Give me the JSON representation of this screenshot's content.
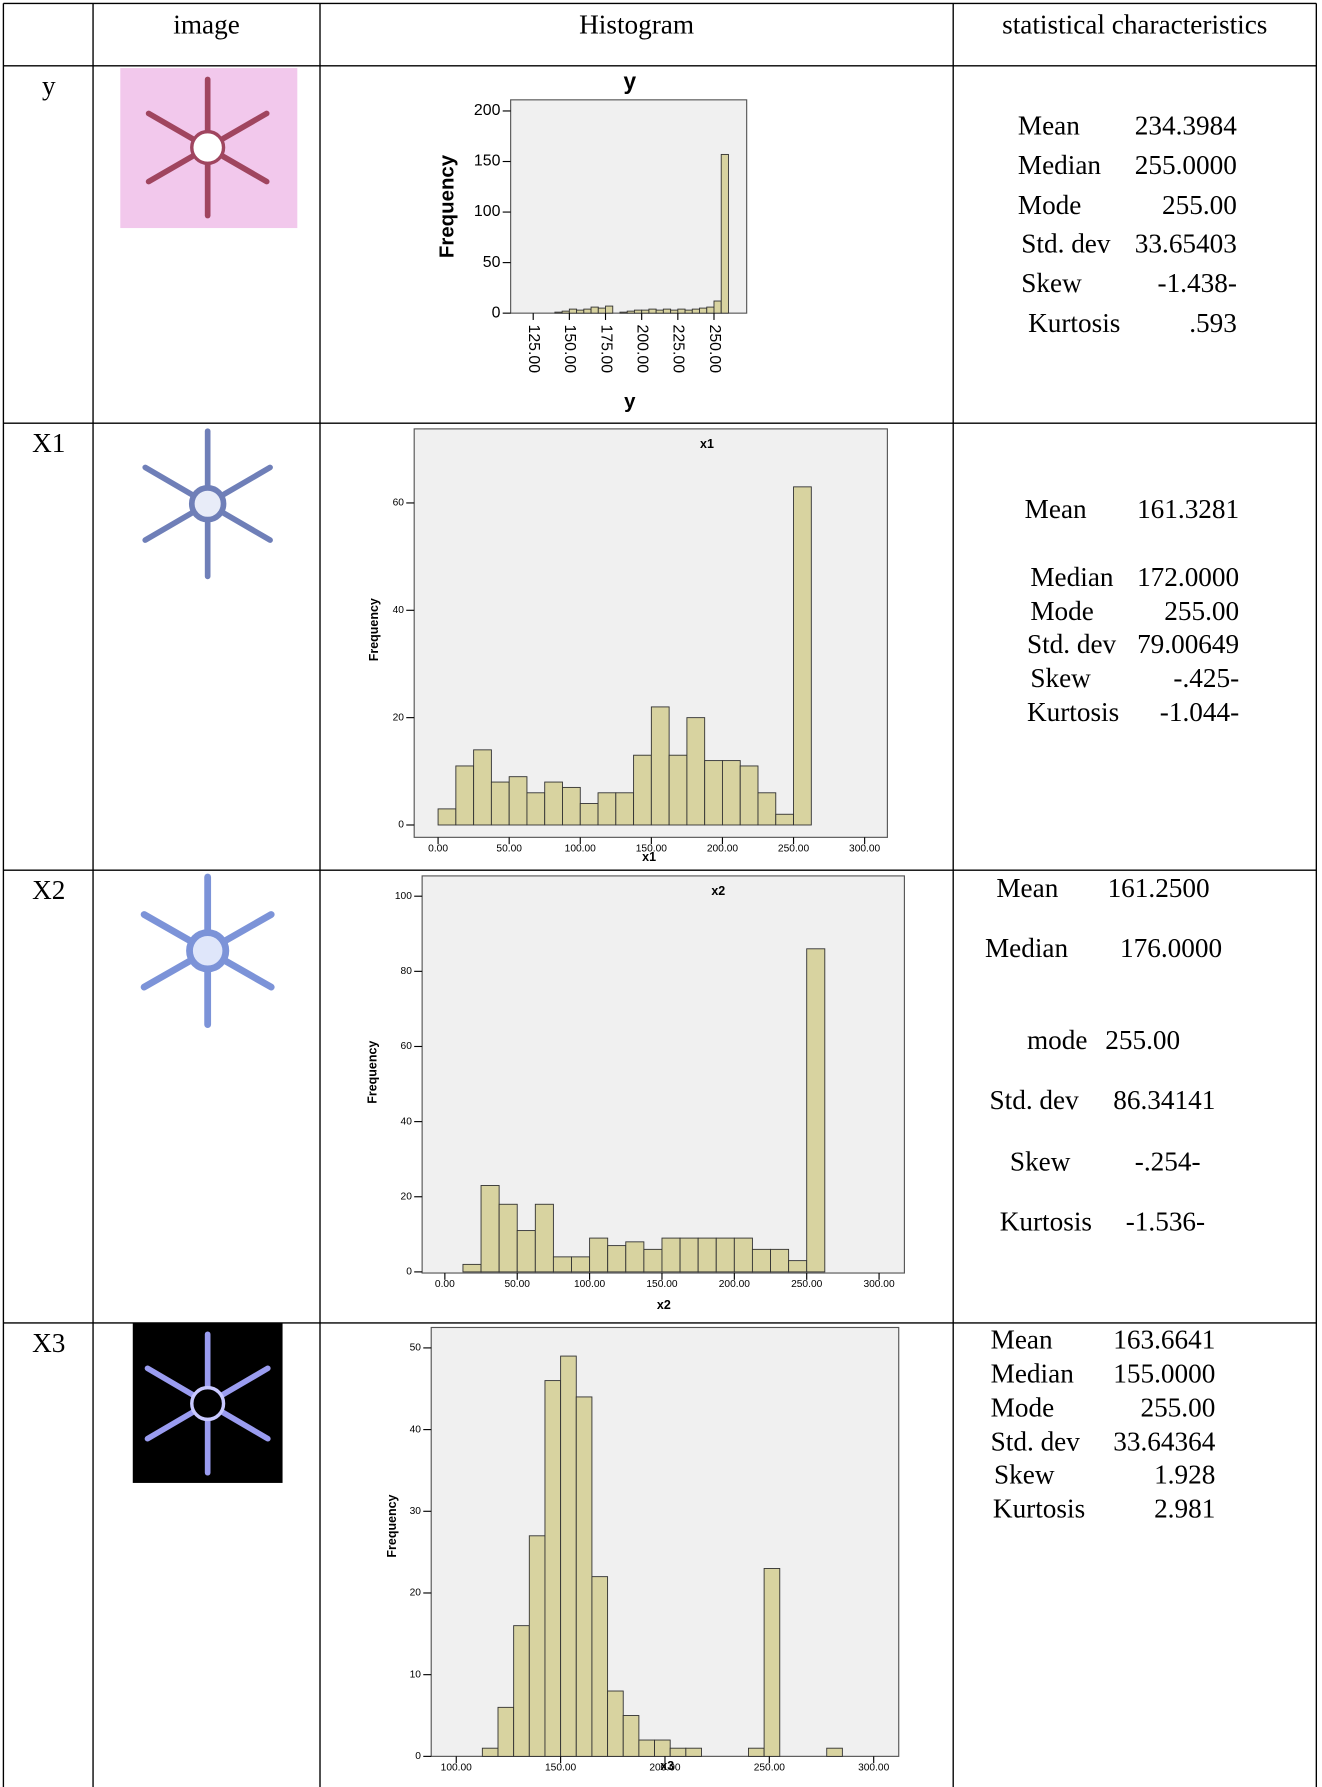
{
  "table": {
    "header": [
      "image",
      "Histogram",
      "statistical characteristics"
    ],
    "rows": [
      {
        "label": "y",
        "chart_data": {
          "type": "histogram",
          "title": "y",
          "x_label": "y",
          "y_label": "Frequency",
          "color": "#d8d3a0",
          "edge_color": "#333333",
          "background": "#f0f0f0",
          "bins": [
            140,
            145,
            150,
            155,
            160,
            165,
            170,
            175,
            180,
            185,
            190,
            195,
            200,
            205,
            210,
            215,
            220,
            225,
            230,
            235,
            240,
            245,
            250,
            255,
            260
          ],
          "values": [
            1,
            2,
            4,
            3,
            4,
            6,
            5,
            7,
            0,
            1,
            2,
            3,
            3,
            4,
            3,
            4,
            3,
            4,
            3,
            4,
            5,
            6,
            12,
            157
          ],
          "xlim": [
            109.4,
            272.6
          ],
          "ylim": [
            0,
            211
          ],
          "xticks": [
            {
              "value": 125,
              "label": "125.00"
            },
            {
              "value": 150,
              "label": "150.00"
            },
            {
              "value": 175,
              "label": "175.00"
            },
            {
              "value": 200,
              "label": "200.00"
            },
            {
              "value": 225,
              "label": "225.00"
            },
            {
              "value": 250,
              "label": "250.00"
            }
          ],
          "yticks": [
            0,
            50,
            100,
            150,
            200
          ]
        },
        "stats": [
          {
            "label": "Mean",
            "value": "234.3984"
          },
          {
            "label": "Median",
            "value": "255.0000"
          },
          {
            "label": "Mode",
            "value": "255.00"
          },
          {
            "label": "Std. dev",
            "value": "33.65403"
          },
          {
            "label": "Skew",
            "value": "-1.438-"
          },
          {
            "label": "Kurtosis",
            "value": ".593"
          }
        ]
      },
      {
        "label": "X1",
        "chart_data": {
          "type": "histogram",
          "title": "x1",
          "x_label": "x1",
          "y_label": "Frequency",
          "color": "#d8d3a0",
          "edge_color": "#333333",
          "background": "#f0f0f0",
          "bins": [
            0,
            12.5,
            25,
            37.5,
            50,
            62.5,
            75,
            87.5,
            100,
            112.5,
            125,
            137.5,
            150,
            162.5,
            175,
            187.5,
            200,
            212.5,
            225,
            237.5,
            250,
            262.5
          ],
          "values": [
            3,
            11,
            14,
            8,
            9,
            6,
            8,
            7,
            4,
            6,
            6,
            13,
            22,
            13,
            20,
            12,
            12,
            11,
            6,
            2,
            63
          ],
          "xlim": [
            -16.8,
            316
          ],
          "ylim": [
            -2.3,
            73.8
          ],
          "xticks": [
            {
              "value": 0,
              "label": "0.00"
            },
            {
              "value": 50,
              "label": "50.00"
            },
            {
              "value": 100,
              "label": "100.00"
            },
            {
              "value": 150,
              "label": "150.00"
            },
            {
              "value": 200,
              "label": "200.00"
            },
            {
              "value": 250,
              "label": "250.00"
            },
            {
              "value": 300,
              "label": "300.00"
            }
          ],
          "yticks": [
            0,
            20,
            40,
            60
          ]
        },
        "stats": [
          {
            "label": "Mean",
            "value": "161.3281"
          },
          {
            "label": "Median",
            "value": "172.0000"
          },
          {
            "label": "Mode",
            "value": "255.00"
          },
          {
            "label": "Std. dev",
            "value": "79.00649"
          },
          {
            "label": "Skew",
            "value": "-.425-"
          },
          {
            "label": "Kurtosis",
            "value": "-1.044-"
          }
        ]
      },
      {
        "label": "X2",
        "chart_data": {
          "type": "histogram",
          "title": "x2",
          "x_label": "x2",
          "y_label": "Frequency",
          "color": "#d8d3a0",
          "edge_color": "#333333",
          "background": "#f0f0f0",
          "bins": [
            12.5,
            25,
            37.5,
            50,
            62.5,
            75,
            87.5,
            100,
            112.5,
            125,
            137.5,
            150,
            162.5,
            175,
            187.5,
            200,
            212.5,
            225,
            237.5,
            250,
            262.5
          ],
          "values": [
            2,
            23,
            18,
            11,
            18,
            4,
            4,
            9,
            7,
            8,
            6,
            9,
            9,
            9,
            9,
            9,
            6,
            6,
            3,
            86
          ],
          "xlim": [
            -15.7,
            317.5
          ],
          "ylim": [
            -0.3,
            105.4
          ],
          "xticks": [
            {
              "value": 0,
              "label": "0.00"
            },
            {
              "value": 50,
              "label": "50.00"
            },
            {
              "value": 100,
              "label": "100.00"
            },
            {
              "value": 150,
              "label": "150.00"
            },
            {
              "value": 200,
              "label": "200.00"
            },
            {
              "value": 250,
              "label": "250.00"
            },
            {
              "value": 300,
              "label": "300.00"
            }
          ],
          "yticks": [
            0,
            20,
            40,
            60,
            80,
            100
          ]
        },
        "stats": [
          {
            "label": "Mean",
            "value": "161.2500"
          },
          {
            "label": "Median",
            "value": "176.0000"
          },
          {
            "label": "mode",
            "value": "255.00"
          },
          {
            "label": "Std. dev",
            "value": "86.34141"
          },
          {
            "label": "Skew",
            "value": "-.254-"
          },
          {
            "label": "Kurtosis",
            "value": "-1.536-"
          }
        ]
      },
      {
        "label": "X3",
        "chart_data": {
          "type": "histogram",
          "x_label": "x3",
          "y_label": "Frequency",
          "color": "#d8d3a0",
          "edge_color": "#333333",
          "background": "#f0f0f0",
          "bins": [
            112.5,
            120,
            127.5,
            135,
            142.5,
            150,
            157.5,
            165,
            172.5,
            180,
            187.5,
            195,
            202.5,
            210,
            217.5,
            225,
            232.5,
            240,
            247.5,
            255,
            262.5,
            270,
            277.5,
            285
          ],
          "values": [
            1,
            6,
            16,
            27,
            46,
            49,
            44,
            22,
            8,
            5,
            2,
            2,
            1,
            1,
            0,
            0,
            0,
            1,
            23,
            0,
            0,
            0,
            1
          ],
          "xlim": [
            88,
            312
          ],
          "ylim": [
            0,
            52.5
          ],
          "xticks": [
            {
              "value": 100,
              "label": "100.00"
            },
            {
              "value": 150,
              "label": "150.00"
            },
            {
              "value": 200,
              "label": "200.00"
            },
            {
              "value": 250,
              "label": "250.00"
            },
            {
              "value": 300,
              "label": "300.00"
            }
          ],
          "yticks": [
            0,
            10,
            20,
            30,
            40,
            50
          ]
        },
        "stats": [
          {
            "label": "Mean",
            "value": "163.6641"
          },
          {
            "label": "Median",
            "value": "155.0000"
          },
          {
            "label": "Mode",
            "value": "255.00"
          },
          {
            "label": "Std. dev",
            "value": "33.64364"
          },
          {
            "label": "Skew",
            "value": "1.928"
          },
          {
            "label": "Kurtosis",
            "value": "2.981"
          }
        ]
      }
    ]
  }
}
